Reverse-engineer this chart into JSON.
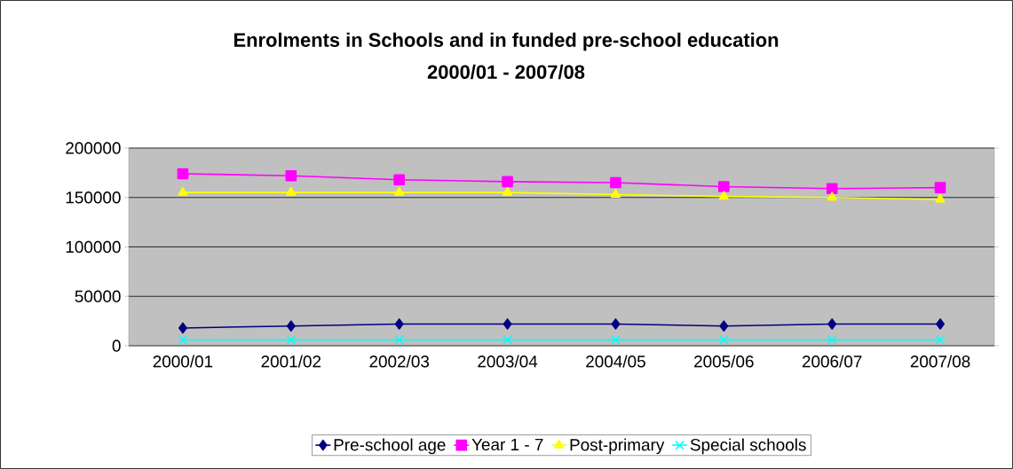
{
  "chart_data": {
    "type": "line",
    "title": "Enrolments in Schools and in funded pre-school education",
    "subtitle": "2000/01 - 2007/08",
    "categories": [
      "2000/01",
      "2001/02",
      "2002/03",
      "2003/04",
      "2004/05",
      "2005/06",
      "2006/07",
      "2007/08"
    ],
    "series": [
      {
        "name": "Pre-school age",
        "color": "#000080",
        "marker": "diamond",
        "values": [
          18000,
          20000,
          22000,
          22000,
          22000,
          20000,
          22000,
          22000
        ]
      },
      {
        "name": "Year 1 - 7",
        "color": "#ff00ff",
        "marker": "square",
        "values": [
          174000,
          172000,
          168000,
          166000,
          165000,
          161000,
          159000,
          160000
        ]
      },
      {
        "name": "Post-primary",
        "color": "#ffff00",
        "marker": "triangle",
        "values": [
          155000,
          155000,
          155000,
          155000,
          153000,
          151000,
          150000,
          148000
        ]
      },
      {
        "name": "Special schools",
        "color": "#00ffff",
        "marker": "cross",
        "values": [
          6000,
          6000,
          6000,
          6000,
          6000,
          6000,
          6000,
          6000
        ]
      }
    ],
    "ylim": [
      0,
      200000
    ],
    "yticks": [
      0,
      50000,
      100000,
      150000,
      200000
    ],
    "grid": "y",
    "legend": "bottom",
    "line_style": "solid"
  }
}
